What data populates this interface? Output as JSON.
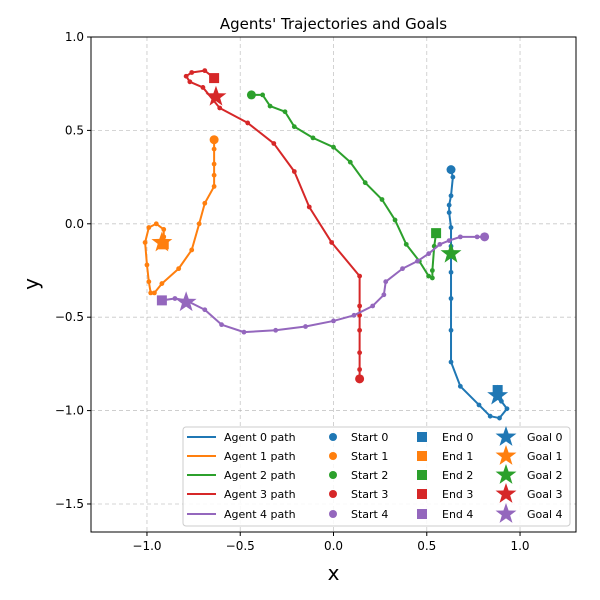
{
  "chart_data": {
    "type": "scatter",
    "title": "Agents' Trajectories and Goals",
    "xlabel": "x",
    "ylabel": "y",
    "xlim": [
      -1.3,
      1.3
    ],
    "ylim": [
      -1.65,
      1.0
    ],
    "xticks": [
      -1.0,
      -0.5,
      0.0,
      0.5,
      1.0
    ],
    "xtick_labels": [
      "−1.0",
      "−0.5",
      "0.0",
      "0.5",
      "1.0"
    ],
    "yticks": [
      -1.5,
      -1.0,
      -0.5,
      0.0,
      0.5,
      1.0
    ],
    "ytick_labels": [
      "−1.5",
      "−1.0",
      "−0.5",
      "0.0",
      "0.5",
      "1.0"
    ],
    "grid": true,
    "legend_position": "bottom-right",
    "agents": [
      {
        "color": "#1f77b4",
        "path_label": "Agent 0 path",
        "start_label": "Start 0",
        "end_label": "End 0",
        "goal_label": "Goal 0",
        "start": [
          0.63,
          0.29
        ],
        "end": [
          0.88,
          -0.89
        ],
        "goal": [
          0.88,
          -0.92
        ],
        "path": [
          [
            0.63,
            0.29
          ],
          [
            0.64,
            0.25
          ],
          [
            0.63,
            0.15
          ],
          [
            0.62,
            0.1
          ],
          [
            0.62,
            0.06
          ],
          [
            0.63,
            -0.02
          ],
          [
            0.63,
            -0.12
          ],
          [
            0.63,
            -0.26
          ],
          [
            0.63,
            -0.4
          ],
          [
            0.63,
            -0.57
          ],
          [
            0.63,
            -0.74
          ],
          [
            0.68,
            -0.87
          ],
          [
            0.78,
            -0.97
          ],
          [
            0.84,
            -1.03
          ],
          [
            0.89,
            -1.04
          ],
          [
            0.93,
            -0.99
          ],
          [
            0.9,
            -0.95
          ],
          [
            0.88,
            -0.89
          ]
        ]
      },
      {
        "color": "#ff7f0e",
        "path_label": "Agent 1 path",
        "start_label": "Start 1",
        "end_label": "End 1",
        "goal_label": "Goal 1",
        "start": [
          -0.64,
          0.45
        ],
        "end": [
          -0.91,
          -0.11
        ],
        "goal": [
          -0.92,
          -0.1
        ],
        "path": [
          [
            -0.64,
            0.45
          ],
          [
            -0.64,
            0.4
          ],
          [
            -0.64,
            0.32
          ],
          [
            -0.64,
            0.26
          ],
          [
            -0.64,
            0.2
          ],
          [
            -0.69,
            0.11
          ],
          [
            -0.72,
            0.0
          ],
          [
            -0.76,
            -0.14
          ],
          [
            -0.83,
            -0.24
          ],
          [
            -0.92,
            -0.32
          ],
          [
            -0.96,
            -0.37
          ],
          [
            -0.98,
            -0.37
          ],
          [
            -0.99,
            -0.31
          ],
          [
            -1.0,
            -0.22
          ],
          [
            -1.01,
            -0.1
          ],
          [
            -0.99,
            -0.02
          ],
          [
            -0.95,
            0.0
          ],
          [
            -0.91,
            -0.03
          ],
          [
            -0.91,
            -0.07
          ],
          [
            -0.91,
            -0.11
          ]
        ]
      },
      {
        "color": "#2ca02c",
        "path_label": "Agent 2 path",
        "start_label": "Start 2",
        "end_label": "End 2",
        "goal_label": "Goal 2",
        "start": [
          -0.44,
          0.69
        ],
        "end": [
          0.55,
          -0.05
        ],
        "goal": [
          0.63,
          -0.16
        ],
        "path": [
          [
            -0.44,
            0.69
          ],
          [
            -0.38,
            0.69
          ],
          [
            -0.34,
            0.63
          ],
          [
            -0.26,
            0.6
          ],
          [
            -0.21,
            0.52
          ],
          [
            -0.11,
            0.46
          ],
          [
            0.0,
            0.41
          ],
          [
            0.09,
            0.33
          ],
          [
            0.17,
            0.22
          ],
          [
            0.26,
            0.13
          ],
          [
            0.33,
            0.02
          ],
          [
            0.39,
            -0.11
          ],
          [
            0.46,
            -0.2
          ],
          [
            0.51,
            -0.28
          ],
          [
            0.53,
            -0.29
          ],
          [
            0.53,
            -0.25
          ],
          [
            0.54,
            -0.12
          ],
          [
            0.55,
            -0.05
          ]
        ]
      },
      {
        "color": "#d62728",
        "path_label": "Agent 3 path",
        "start_label": "Start 3",
        "end_label": "End 3",
        "goal_label": "Goal 3",
        "start": [
          0.14,
          -0.83
        ],
        "end": [
          -0.64,
          0.78
        ],
        "goal": [
          -0.63,
          0.68
        ],
        "path": [
          [
            0.14,
            -0.83
          ],
          [
            0.14,
            -0.78
          ],
          [
            0.14,
            -0.69
          ],
          [
            0.14,
            -0.57
          ],
          [
            0.14,
            -0.49
          ],
          [
            0.14,
            -0.44
          ],
          [
            0.14,
            -0.28
          ],
          [
            -0.01,
            -0.1
          ],
          [
            -0.13,
            0.09
          ],
          [
            -0.21,
            0.28
          ],
          [
            -0.32,
            0.43
          ],
          [
            -0.46,
            0.54
          ],
          [
            -0.61,
            0.62
          ],
          [
            -0.7,
            0.73
          ],
          [
            -0.77,
            0.76
          ],
          [
            -0.79,
            0.79
          ],
          [
            -0.76,
            0.81
          ],
          [
            -0.69,
            0.82
          ],
          [
            -0.64,
            0.78
          ]
        ]
      },
      {
        "color": "#9467bd",
        "path_label": "Agent 4 path",
        "start_label": "Start 4",
        "end_label": "End 4",
        "goal_label": "Goal 4",
        "start": [
          0.81,
          -0.07
        ],
        "end": [
          -0.92,
          -0.41
        ],
        "goal": [
          -0.79,
          -0.42
        ],
        "path": [
          [
            0.81,
            -0.07
          ],
          [
            0.77,
            -0.07
          ],
          [
            0.68,
            -0.07
          ],
          [
            0.62,
            -0.09
          ],
          [
            0.57,
            -0.11
          ],
          [
            0.51,
            -0.16
          ],
          [
            0.45,
            -0.2
          ],
          [
            0.37,
            -0.24
          ],
          [
            0.28,
            -0.31
          ],
          [
            0.27,
            -0.38
          ],
          [
            0.21,
            -0.44
          ],
          [
            0.11,
            -0.49
          ],
          [
            0.0,
            -0.52
          ],
          [
            -0.15,
            -0.55
          ],
          [
            -0.31,
            -0.57
          ],
          [
            -0.48,
            -0.58
          ],
          [
            -0.6,
            -0.54
          ],
          [
            -0.69,
            -0.46
          ],
          [
            -0.79,
            -0.41
          ],
          [
            -0.85,
            -0.4
          ],
          [
            -0.92,
            -0.41
          ]
        ]
      }
    ]
  }
}
